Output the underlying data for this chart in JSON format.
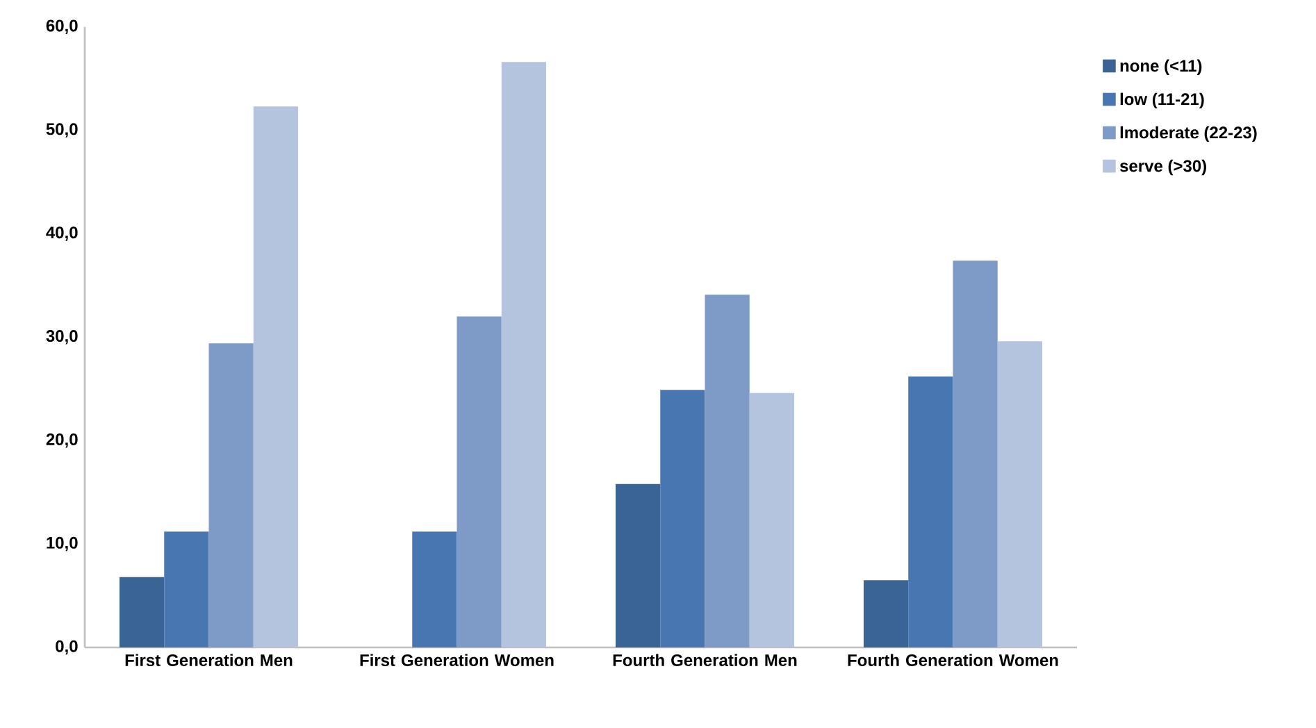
{
  "chart_data": {
    "type": "bar",
    "categories": [
      "First Generation Men",
      "First Generation Women",
      "Fourth Generation Men",
      "Fourth Generation Women"
    ],
    "series": [
      {
        "name": "none (<11)",
        "color": "#3a6396",
        "values": [
          6.8,
          0,
          15.8,
          6.5
        ]
      },
      {
        "name": "low (11-21)",
        "color": "#4876b0",
        "values": [
          11.2,
          11.2,
          24.9,
          26.2
        ]
      },
      {
        "name": "lmoderate (22-23)",
        "color": "#7e9bc8",
        "values": [
          29.4,
          32.0,
          34.1,
          37.4
        ]
      },
      {
        "name": "serve (>30)",
        "color": "#b4c3de",
        "values": [
          52.3,
          56.6,
          24.6,
          29.6
        ]
      }
    ],
    "ylim": [
      0,
      60
    ],
    "yticks": [
      {
        "value": 0,
        "label": "0,0"
      },
      {
        "value": 10,
        "label": "10,0"
      },
      {
        "value": 20,
        "label": "20,0"
      },
      {
        "value": 30,
        "label": "30,0"
      },
      {
        "value": 40,
        "label": "40,0"
      },
      {
        "value": 50,
        "label": "50,0"
      },
      {
        "value": 60,
        "label": "60,0"
      }
    ],
    "grid": false,
    "legend": "top right"
  }
}
